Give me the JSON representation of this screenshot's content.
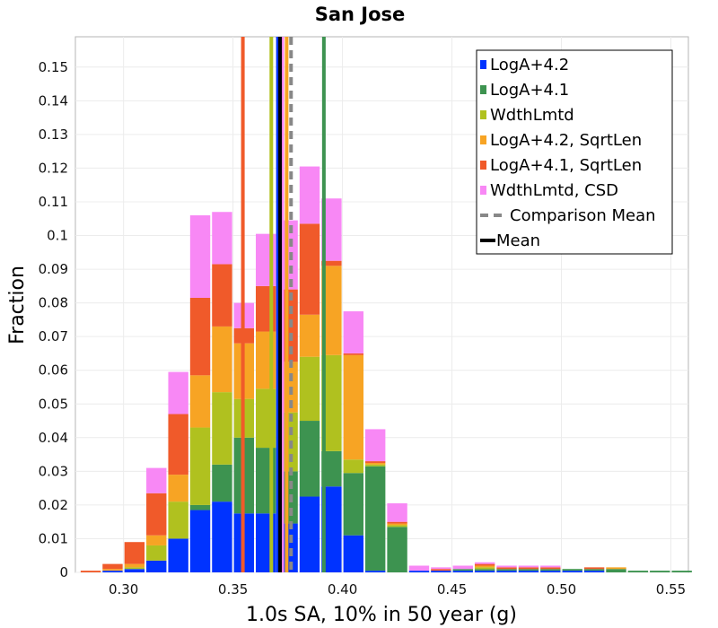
{
  "chart_data": {
    "type": "bar",
    "stacked": true,
    "title": "San Jose",
    "xlabel": "1.0s SA, 10% in 50 year (g)",
    "ylabel": "Fraction",
    "xlim": [
      0.278,
      0.558
    ],
    "ylim": [
      0,
      0.159
    ],
    "grid": true,
    "legend_position": "top-right",
    "bin_width": 0.01,
    "xticks": [
      "0.30",
      "0.35",
      "0.40",
      "0.45",
      "0.50",
      "0.55"
    ],
    "xtick_values": [
      0.3,
      0.35,
      0.4,
      0.45,
      0.5,
      0.55
    ],
    "yticks": [
      "0",
      "0.01",
      "0.02",
      "0.03",
      "0.04",
      "0.05",
      "0.06",
      "0.07",
      "0.08",
      "0.09",
      "0.1",
      "0.11",
      "0.12",
      "0.13",
      "0.14",
      "0.15"
    ],
    "ytick_values": [
      0,
      0.01,
      0.02,
      0.03,
      0.04,
      0.05,
      0.06,
      0.07,
      0.08,
      0.09,
      0.1,
      0.11,
      0.12,
      0.13,
      0.14,
      0.15
    ],
    "bin_centers": [
      0.285,
      0.295,
      0.305,
      0.315,
      0.325,
      0.335,
      0.345,
      0.355,
      0.365,
      0.375,
      0.385,
      0.395,
      0.405,
      0.415,
      0.425,
      0.435,
      0.445,
      0.455,
      0.465,
      0.475,
      0.485,
      0.495,
      0.505,
      0.515,
      0.525,
      0.535,
      0.545,
      0.555
    ],
    "series": [
      {
        "name": "LogA+4.2",
        "color": "#0033ff",
        "values": [
          0,
          0.0005,
          0.001,
          0.0035,
          0.01,
          0.0185,
          0.021,
          0.0175,
          0.0175,
          0.0145,
          0.0225,
          0.0255,
          0.011,
          0.0005,
          0,
          0.0005,
          0.0005,
          0.0005,
          0.0005,
          0.0005,
          0.0005,
          0.0005,
          0.0005,
          0.0005,
          0,
          0,
          0,
          0
        ]
      },
      {
        "name": "LogA+4.1",
        "color": "#3d9350",
        "values": [
          0,
          0,
          0,
          0,
          0,
          0.0015,
          0.011,
          0.0225,
          0.0195,
          0.0155,
          0.0225,
          0.0105,
          0.0185,
          0.031,
          0.0135,
          0,
          0,
          0.0005,
          0.0005,
          0.0005,
          0.0005,
          0.0005,
          0.0005,
          0.0005,
          0.001,
          0.0005,
          0.0005,
          0.0005
        ]
      },
      {
        "name": "WdthLmtd",
        "color": "#b0c11f",
        "values": [
          0,
          0,
          0.0005,
          0.0045,
          0.011,
          0.023,
          0.0215,
          0.0115,
          0.0175,
          0.0175,
          0.019,
          0.0285,
          0.004,
          0.0005,
          0.0005,
          0,
          0,
          0,
          0.0005,
          0,
          0,
          0,
          0,
          0,
          0,
          0,
          0,
          0
        ]
      },
      {
        "name": "LogA+4.2, SqrtLen",
        "color": "#f7a424",
        "values": [
          0,
          0.0005,
          0.001,
          0.003,
          0.008,
          0.0155,
          0.0195,
          0.0165,
          0.017,
          0.015,
          0.0125,
          0.0265,
          0.031,
          0.0005,
          0.0005,
          0,
          0,
          0,
          0.0005,
          0,
          0,
          0,
          0,
          0,
          0.0005,
          0,
          0,
          0
        ]
      },
      {
        "name": "LogA+4.1, SqrtLen",
        "color": "#f05a2a",
        "values": [
          0.0005,
          0.0015,
          0.0065,
          0.0125,
          0.018,
          0.023,
          0.0185,
          0.0045,
          0.0135,
          0.0215,
          0.027,
          0.0015,
          0.0005,
          0.0005,
          0.0005,
          0,
          0.0005,
          0,
          0.0005,
          0.0005,
          0.0005,
          0.0005,
          0,
          0.0005,
          0,
          0,
          0,
          0
        ]
      },
      {
        "name": "WdthLmtd, CSD",
        "color": "#f888f5",
        "values": [
          0,
          0,
          0,
          0.0075,
          0.0125,
          0.0245,
          0.0155,
          0.0075,
          0.0155,
          0.0205,
          0.017,
          0.0185,
          0.0125,
          0.0095,
          0.0055,
          0.0015,
          0.0005,
          0.001,
          0.0005,
          0.0005,
          0.0005,
          0.0005,
          0,
          0,
          0,
          0,
          0,
          0
        ]
      }
    ],
    "vertical_lines": [
      {
        "series": "LogA+4.2",
        "x": 0.3705
      },
      {
        "series": "LogA+4.1",
        "x": 0.3915
      },
      {
        "series": "WdthLmtd",
        "x": 0.3675
      },
      {
        "series": "LogA+4.2, SqrtLen",
        "x": 0.3745
      },
      {
        "series": "LogA+4.1, SqrtLen",
        "x": 0.3545
      },
      {
        "series": "WdthLmtd, CSD",
        "x": 0.3725
      }
    ],
    "comparison_mean": {
      "name": "Comparison Mean",
      "x": 0.3765,
      "color": "#888888"
    },
    "mean": {
      "name": "Mean",
      "x": 0.3715,
      "color": "#000000"
    }
  }
}
